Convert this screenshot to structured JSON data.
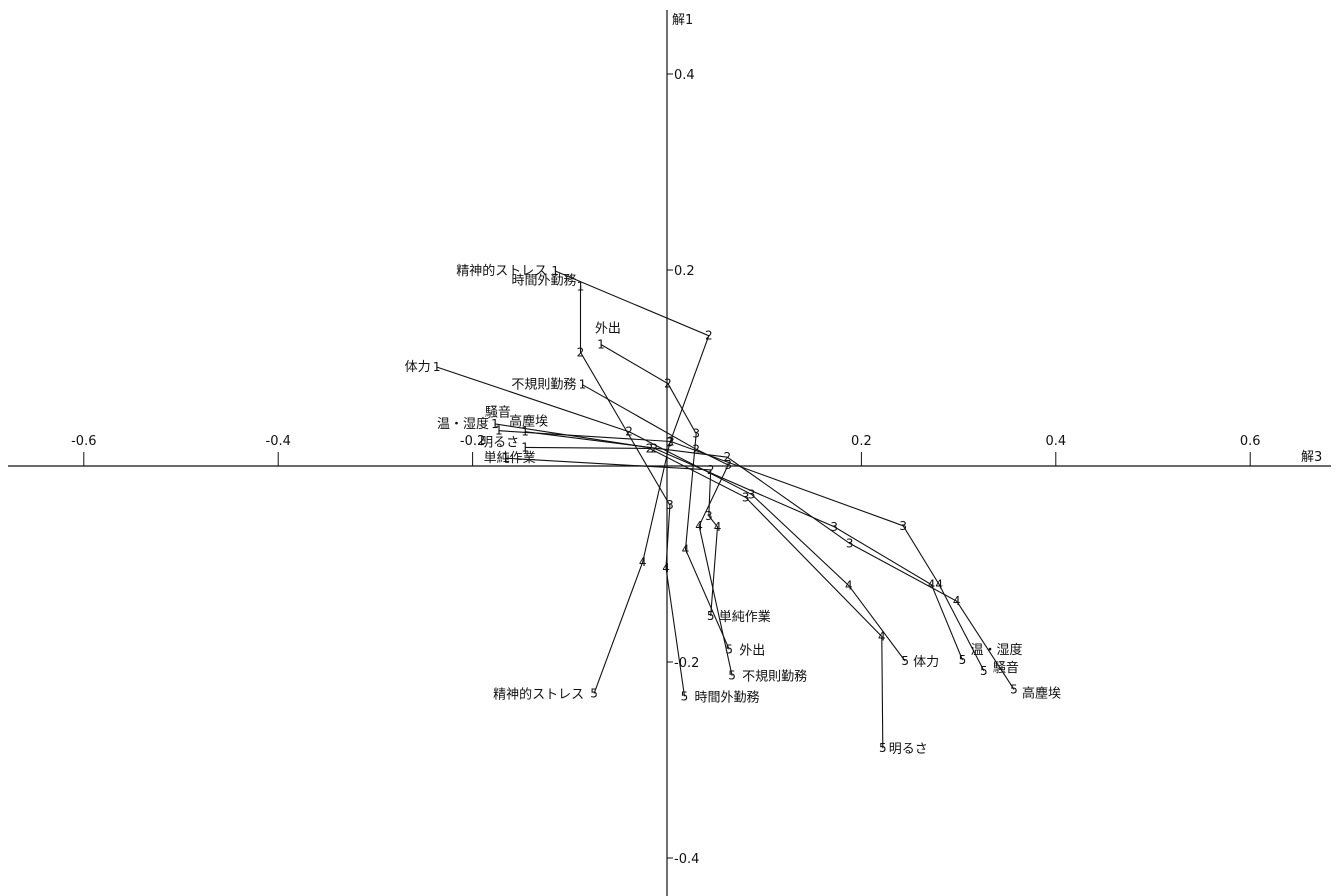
{
  "chart_data": {
    "type": "scatter",
    "xlabel": "解3",
    "ylabel": "解1",
    "xlim": [
      -0.67,
      0.68
    ],
    "ylim": [
      -0.44,
      0.47
    ],
    "xticks": [
      -0.6,
      -0.4,
      -0.2,
      0.2,
      0.4,
      0.6
    ],
    "xtick_labels": [
      "-0.6",
      "-0.4",
      "-0.2",
      "0.2",
      "0.4",
      "0.6"
    ],
    "yticks": [
      0.4,
      0.2,
      -0.2,
      -0.4
    ],
    "ytick_labels": [
      "0.4",
      "0.2",
      "-0.2",
      "-0.4"
    ],
    "grid": false,
    "legend": "none",
    "point_labels": [
      "1",
      "2",
      "3",
      "4",
      "5"
    ],
    "series": [
      {
        "name": "精神的ストレス",
        "points": [
          [
            -0.115,
            0.199
          ],
          [
            0.043,
            0.133
          ],
          [
            0.003,
            0.024
          ],
          [
            -0.025,
            -0.098
          ],
          [
            -0.075,
            -0.232
          ]
        ]
      },
      {
        "name": "時間外勤務",
        "points": [
          [
            -0.089,
            0.183
          ],
          [
            -0.089,
            0.116
          ],
          [
            0.003,
            -0.04
          ],
          [
            -0.001,
            -0.104
          ],
          [
            0.018,
            -0.235
          ]
        ]
      },
      {
        "name": "外出",
        "points": [
          [
            -0.068,
            0.124
          ],
          [
            0.001,
            0.084
          ],
          [
            0.03,
            0.033
          ],
          [
            0.019,
            -0.085
          ],
          [
            0.064,
            -0.187
          ]
        ]
      },
      {
        "name": "体力",
        "points": [
          [
            -0.237,
            0.101
          ],
          [
            -0.039,
            0.035
          ],
          [
            0.087,
            -0.029
          ],
          [
            0.187,
            -0.122
          ],
          [
            0.245,
            -0.199
          ]
        ]
      },
      {
        "name": "不規則勤務",
        "points": [
          [
            -0.087,
            0.083
          ],
          [
            0.03,
            0.017
          ],
          [
            0.063,
            0.001
          ],
          [
            0.033,
            -0.061
          ],
          [
            0.067,
            -0.214
          ]
        ]
      },
      {
        "name": "温・湿度",
        "points": [
          [
            -0.177,
            0.043
          ],
          [
            -0.013,
            0.018
          ],
          [
            0.172,
            -0.062
          ],
          [
            0.272,
            -0.121
          ],
          [
            0.304,
            -0.198
          ]
        ]
      },
      {
        "name": "騒音",
        "points": [
          [
            -0.173,
            0.036
          ],
          [
            0.004,
            0.025
          ],
          [
            0.243,
            -0.061
          ],
          [
            0.28,
            -0.121
          ],
          [
            0.326,
            -0.209
          ]
        ]
      },
      {
        "name": "高塵埃",
        "points": [
          [
            -0.146,
            0.035
          ],
          [
            0.062,
            0.009
          ],
          [
            0.188,
            -0.079
          ],
          [
            0.298,
            -0.138
          ],
          [
            0.357,
            -0.228
          ]
        ]
      },
      {
        "name": "明るさ",
        "points": [
          [
            -0.146,
            0.019
          ],
          [
            -0.018,
            0.018
          ],
          [
            0.081,
            -0.032
          ],
          [
            0.221,
            -0.174
          ],
          [
            0.222,
            -0.288
          ]
        ]
      },
      {
        "name": "単純作業",
        "points": [
          [
            -0.166,
            0.008
          ],
          [
            0.045,
            -0.004
          ],
          [
            0.043,
            -0.051
          ],
          [
            0.052,
            -0.062
          ],
          [
            0.045,
            -0.153
          ]
        ]
      }
    ]
  }
}
